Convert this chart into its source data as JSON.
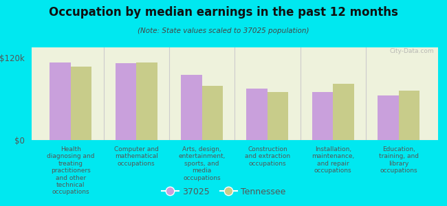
{
  "title": "Occupation by median earnings in the past 12 months",
  "subtitle": "(Note: State values scaled to 37025 population)",
  "categories": [
    "Health\ndiagnosing and\ntreating\npractitioners\nand other\ntechnical\noccupations",
    "Computer and\nmathematical\noccupations",
    "Arts, design,\nentertainment,\nsports, and\nmedia\noccupations",
    "Construction\nand extraction\noccupations",
    "Installation,\nmaintenance,\nand repair\noccupations",
    "Education,\ntraining, and\nlibrary\noccupations"
  ],
  "values_37025": [
    113000,
    112000,
    95000,
    75000,
    70000,
    65000
  ],
  "values_tennessee": [
    107000,
    113000,
    79000,
    70000,
    82000,
    72000
  ],
  "bar_color_37025": "#c9a0dc",
  "bar_color_tennessee": "#c8cc8a",
  "background_color": "#00e8f0",
  "plot_bg_color": "#eef2dc",
  "ytick_labels": [
    "$0",
    "$120k"
  ],
  "yticks": [
    0,
    120000
  ],
  "ylim": [
    0,
    135000
  ],
  "legend_37025": "37025",
  "legend_tennessee": "Tennessee",
  "watermark": "City-Data.com"
}
